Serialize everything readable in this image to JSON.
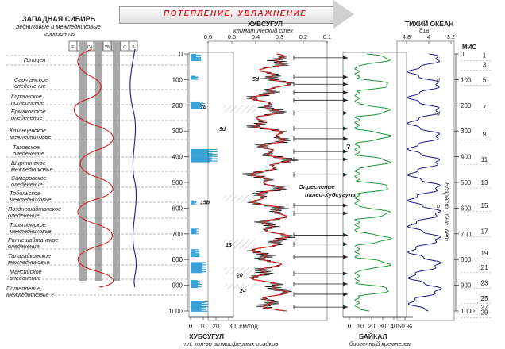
{
  "header": {
    "banner_text": "ПОТЕПЛЕНИЕ, УВЛАЖНЕНИЕ",
    "west_siberia_title": "ЗАПАДНАЯ СИБИРЬ",
    "west_siberia_subtitle_1": "ледниковые и межледниковые",
    "west_siberia_subtitle_2": "горизонты",
    "khubsugul_title": "ХУБСУГУЛ",
    "khubsugul_subtitle": "климатический стек",
    "pacific_title": "ТИХИЙ ОКЕАН",
    "pacific_subtitle": "δ18",
    "mis_label": "МИС"
  },
  "strat_columns": [
    "Е",
    "ТЕ",
    "СА",
    "ЗЕ",
    "УБ",
    "Т",
    "С",
    "В"
  ],
  "horizons": [
    "Голоцен",
    "Сартанское оледенение",
    "Каргинское потепление",
    "Ермаковское оледенение",
    "Казанцевское межледниковье",
    "Тазовское оледенение",
    "Ширтинское межледниковье",
    "Самаровское оледенение",
    "Тобольское межледниковье",
    "Позднешайтанское оледенение",
    "Тильтимское межледниковье",
    "Раннешайтанское оледенение",
    "Талагайкинское межледниковье",
    "Мансийское оледенение",
    "Потепление, Межледниковье ?"
  ],
  "top_axis_stack": [
    "0.6",
    "0.5",
    "0.4",
    "0.3",
    "0.2",
    "0.1"
  ],
  "top_axis_d18o": [
    "4.8",
    "4",
    "3.2"
  ],
  "age_ticks": [
    "0",
    "100",
    "200",
    "300",
    "400",
    "500",
    "600",
    "700",
    "800",
    "900",
    "1000"
  ],
  "mis_numbers": [
    "1",
    "3",
    "5",
    "7",
    "9",
    "11",
    "13",
    "15",
    "17",
    "19",
    "21",
    "23",
    "25",
    "27",
    "29"
  ],
  "substages": [
    "5d",
    "7d",
    "9d",
    "15b",
    "18",
    "20",
    "24"
  ],
  "pacific_substages": [
    "d",
    "d",
    "b"
  ],
  "question_mark": "?",
  "annotation_desalination": "Опреснение палео-Хубсугула",
  "age_axis_label": "Возраст, тыс. лет",
  "bottom_axis_precip": [
    "0",
    "10",
    "20",
    "30, см/год"
  ],
  "bottom_axis_silica": [
    "0",
    "10",
    "20",
    "30",
    "40",
    "50 %"
  ],
  "bottom_title_left": "ХУБСУГУЛ",
  "bottom_caption_left": "mn. кол-во атмосферных осадков",
  "bottom_title_right": "БАЙКАЛ",
  "bottom_caption_right": "биогенный кремнезем",
  "colors": {
    "precip_fill": "#3aa0d8",
    "stack_raw": "#111111",
    "stack_smooth": "#d82020",
    "baikal": "#1a9a3a",
    "pacific": "#1a1a8a",
    "west_red": "#d81a1a",
    "west_blue": "#1a1a9a",
    "banner_text": "#e0202a"
  }
}
